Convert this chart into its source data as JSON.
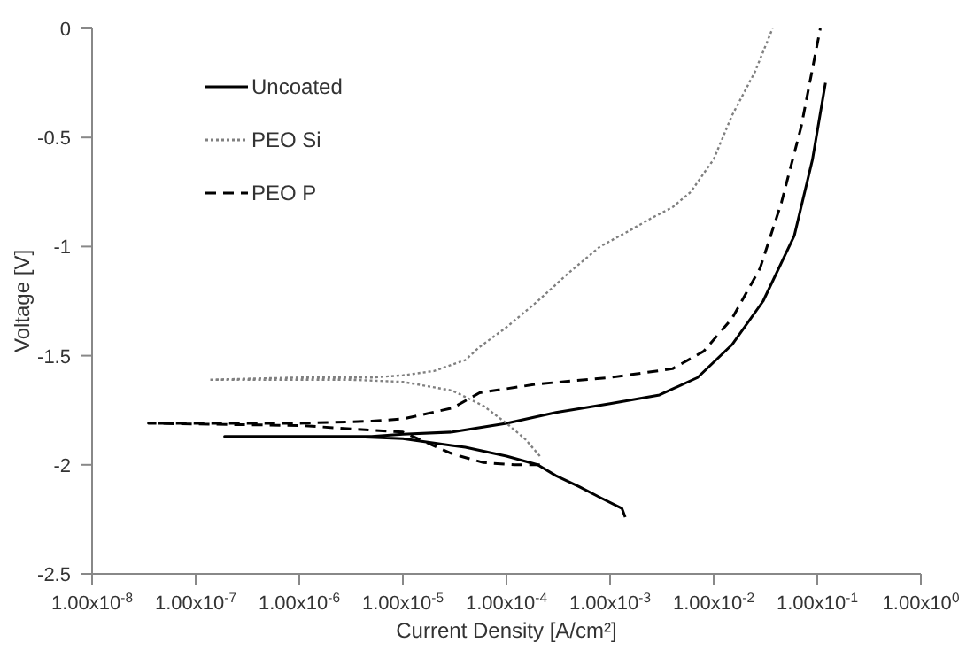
{
  "chart_data": {
    "type": "line",
    "xlabel": "Current Density [A/cm²]",
    "ylabel": "Voltage [V]",
    "log": "x",
    "xlim": [
      1e-08,
      1
    ],
    "ylim": [
      -2.5,
      0
    ],
    "xticks": [
      {
        "value": 1e-08,
        "label": "1.00x10$^{-8}$"
      },
      {
        "value": 1e-07,
        "label": "1.00x10$^{-7}$"
      },
      {
        "value": 1e-06,
        "label": "1.00x10$^{-6}$"
      },
      {
        "value": 1e-05,
        "label": "1.00x10$^{-5}$"
      },
      {
        "value": 0.0001,
        "label": "1.00x10$^{-4}$"
      },
      {
        "value": 0.001,
        "label": "1.00x10$^{-3}$"
      },
      {
        "value": 0.01,
        "label": "1.00x10$^{-2}$"
      },
      {
        "value": 0.1,
        "label": "1.00x10$^{-1}$"
      },
      {
        "value": 1,
        "label": "1.00x10$^{0}$"
      }
    ],
    "yticks": [
      0,
      -0.5,
      -1,
      -1.5,
      -2,
      -2.5
    ],
    "legend": "top left",
    "marker": "none",
    "series": [
      {
        "name": "Uncoated",
        "color": "#000000",
        "line_style": "solid",
        "x": [
          0.0014,
          0.0013,
          0.0008,
          0.0005,
          0.0003,
          0.0002,
          0.0001,
          4e-05,
          2e-05,
          1e-05,
          3e-06,
          1e-06,
          1.9e-07,
          1e-06,
          5e-06,
          1e-05,
          3e-05,
          0.0001,
          0.0003,
          0.001,
          0.003,
          0.007,
          0.015,
          0.03,
          0.06,
          0.09,
          0.12
        ],
        "values": [
          -2.24,
          -2.2,
          -2.15,
          -2.1,
          -2.05,
          -2.0,
          -1.96,
          -1.92,
          -1.9,
          -1.88,
          -1.87,
          -1.87,
          -1.87,
          -1.87,
          -1.87,
          -1.86,
          -1.85,
          -1.81,
          -1.76,
          -1.72,
          -1.68,
          -1.6,
          -1.45,
          -1.25,
          -0.95,
          -0.6,
          -0.25
        ]
      },
      {
        "name": "PEO Si",
        "color": "#808080",
        "line_style": "dotted",
        "x": [
          0.00021,
          0.00015,
          0.0001,
          6e-05,
          3e-05,
          1e-05,
          3e-06,
          1e-06,
          1.35e-07,
          1e-06,
          5e-06,
          1e-05,
          2e-05,
          4e-05,
          5.5e-05,
          0.0001,
          0.0002,
          0.0004,
          0.0008,
          0.0015,
          0.0025,
          0.004,
          0.006,
          0.01,
          0.015,
          0.025,
          0.037
        ],
        "values": [
          -1.96,
          -1.88,
          -1.81,
          -1.73,
          -1.66,
          -1.62,
          -1.61,
          -1.61,
          -1.61,
          -1.6,
          -1.6,
          -1.59,
          -1.57,
          -1.52,
          -1.46,
          -1.37,
          -1.25,
          -1.12,
          -1.0,
          -0.93,
          -0.87,
          -0.82,
          -0.75,
          -0.6,
          -0.4,
          -0.2,
          0
        ]
      },
      {
        "name": "PEO P",
        "color": "#000000",
        "line_style": "dashed",
        "x": [
          0.00021,
          0.00012,
          6e-05,
          3e-05,
          1e-05,
          1e-06,
          3.5e-08,
          1e-06,
          5e-06,
          1e-05,
          3e-05,
          5.5e-05,
          0.0002,
          0.001,
          0.004,
          0.008,
          0.015,
          0.028,
          0.045,
          0.07,
          0.107
        ],
        "values": [
          -2.0,
          -2.0,
          -1.99,
          -1.95,
          -1.85,
          -1.82,
          -1.81,
          -1.81,
          -1.8,
          -1.79,
          -1.74,
          -1.67,
          -1.63,
          -1.6,
          -1.56,
          -1.48,
          -1.33,
          -1.1,
          -0.8,
          -0.45,
          0
        ]
      }
    ]
  }
}
